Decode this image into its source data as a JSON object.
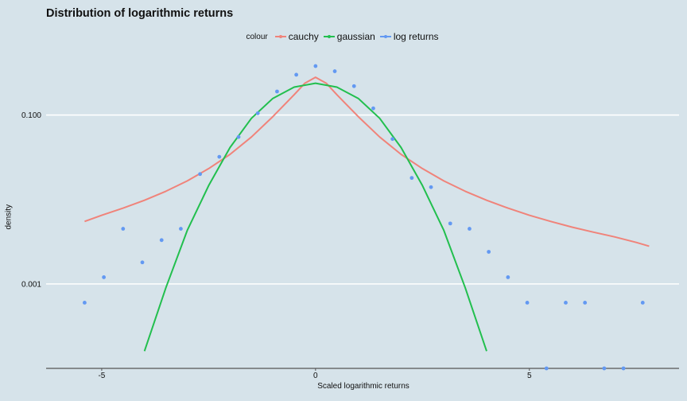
{
  "chart_data": {
    "type": "line",
    "title": "Distribution of logarithmic returns",
    "xlabel": "Scaled logarithmic returns",
    "ylabel": "density",
    "legend_title": "colour",
    "legend_position": "top",
    "y_scale": "log10",
    "xlim": [
      -6.3,
      8.5
    ],
    "ylim": [
      0.0001,
      0.6
    ],
    "x_ticks": [
      -5,
      0,
      5
    ],
    "x_tick_labels": [
      "-5",
      "0",
      "5"
    ],
    "y_ticks": [
      0.001,
      0.1
    ],
    "y_tick_labels": [
      "0.001",
      "0.100"
    ],
    "grid": true,
    "colors": {
      "background": "#d6e3ea",
      "grid": "#ffffff",
      "axis": "#555555",
      "cauchy": "#f0837a",
      "gaussian": "#22bf4e",
      "log returns": "#6399f2"
    },
    "series": [
      {
        "name": "cauchy",
        "kind": "line",
        "x": [
          -5.4,
          -5.0,
          -4.5,
          -4.0,
          -3.5,
          -3.0,
          -2.5,
          -2.0,
          -1.5,
          -1.0,
          -0.5,
          -0.25,
          0.0,
          0.25,
          0.5,
          1.0,
          1.5,
          2.0,
          2.5,
          3.0,
          3.5,
          4.0,
          4.5,
          5.0,
          5.5,
          6.0,
          6.5,
          7.0,
          7.5,
          7.8
        ],
        "y": [
          0.0055,
          0.0065,
          0.0079,
          0.0098,
          0.0125,
          0.0166,
          0.0232,
          0.0342,
          0.0549,
          0.0958,
          0.174,
          0.238,
          0.28,
          0.238,
          0.174,
          0.0958,
          0.0549,
          0.0342,
          0.0232,
          0.0166,
          0.0125,
          0.0098,
          0.0079,
          0.0065,
          0.0055,
          0.0047,
          0.0041,
          0.0036,
          0.0031,
          0.0028
        ]
      },
      {
        "name": "gaussian",
        "kind": "line",
        "x": [
          -4.0,
          -3.5,
          -3.0,
          -2.5,
          -2.0,
          -1.5,
          -1.0,
          -0.5,
          0.0,
          0.5,
          1.0,
          1.5,
          2.0,
          2.5,
          3.0,
          3.5,
          4.0
        ],
        "y": [
          0.00016,
          0.0009,
          0.0043,
          0.0146,
          0.0413,
          0.0915,
          0.1575,
          0.214,
          0.238,
          0.214,
          0.1575,
          0.0915,
          0.0413,
          0.0146,
          0.0043,
          0.0009,
          0.00016
        ]
      },
      {
        "name": "log returns",
        "kind": "points",
        "x": [
          -5.4,
          -4.95,
          -4.5,
          -4.05,
          -3.6,
          -3.15,
          -2.7,
          -2.25,
          -1.8,
          -1.35,
          -0.9,
          -0.45,
          0.0,
          0.45,
          0.9,
          1.35,
          1.8,
          2.25,
          2.7,
          3.15,
          3.6,
          4.05,
          4.5,
          4.95,
          5.4,
          5.85,
          6.3,
          6.75,
          7.2,
          7.65
        ],
        "y": [
          0.0006,
          0.0012,
          0.0045,
          0.0018,
          0.0033,
          0.0045,
          0.02,
          0.032,
          0.055,
          0.105,
          0.19,
          0.3,
          0.38,
          0.33,
          0.22,
          0.12,
          0.052,
          0.018,
          0.014,
          0.0052,
          0.0045,
          0.0024,
          0.0012,
          0.0006,
          0.0001,
          0.0006,
          0.0006,
          0.0001,
          0.0001,
          0.0006
        ]
      }
    ]
  }
}
